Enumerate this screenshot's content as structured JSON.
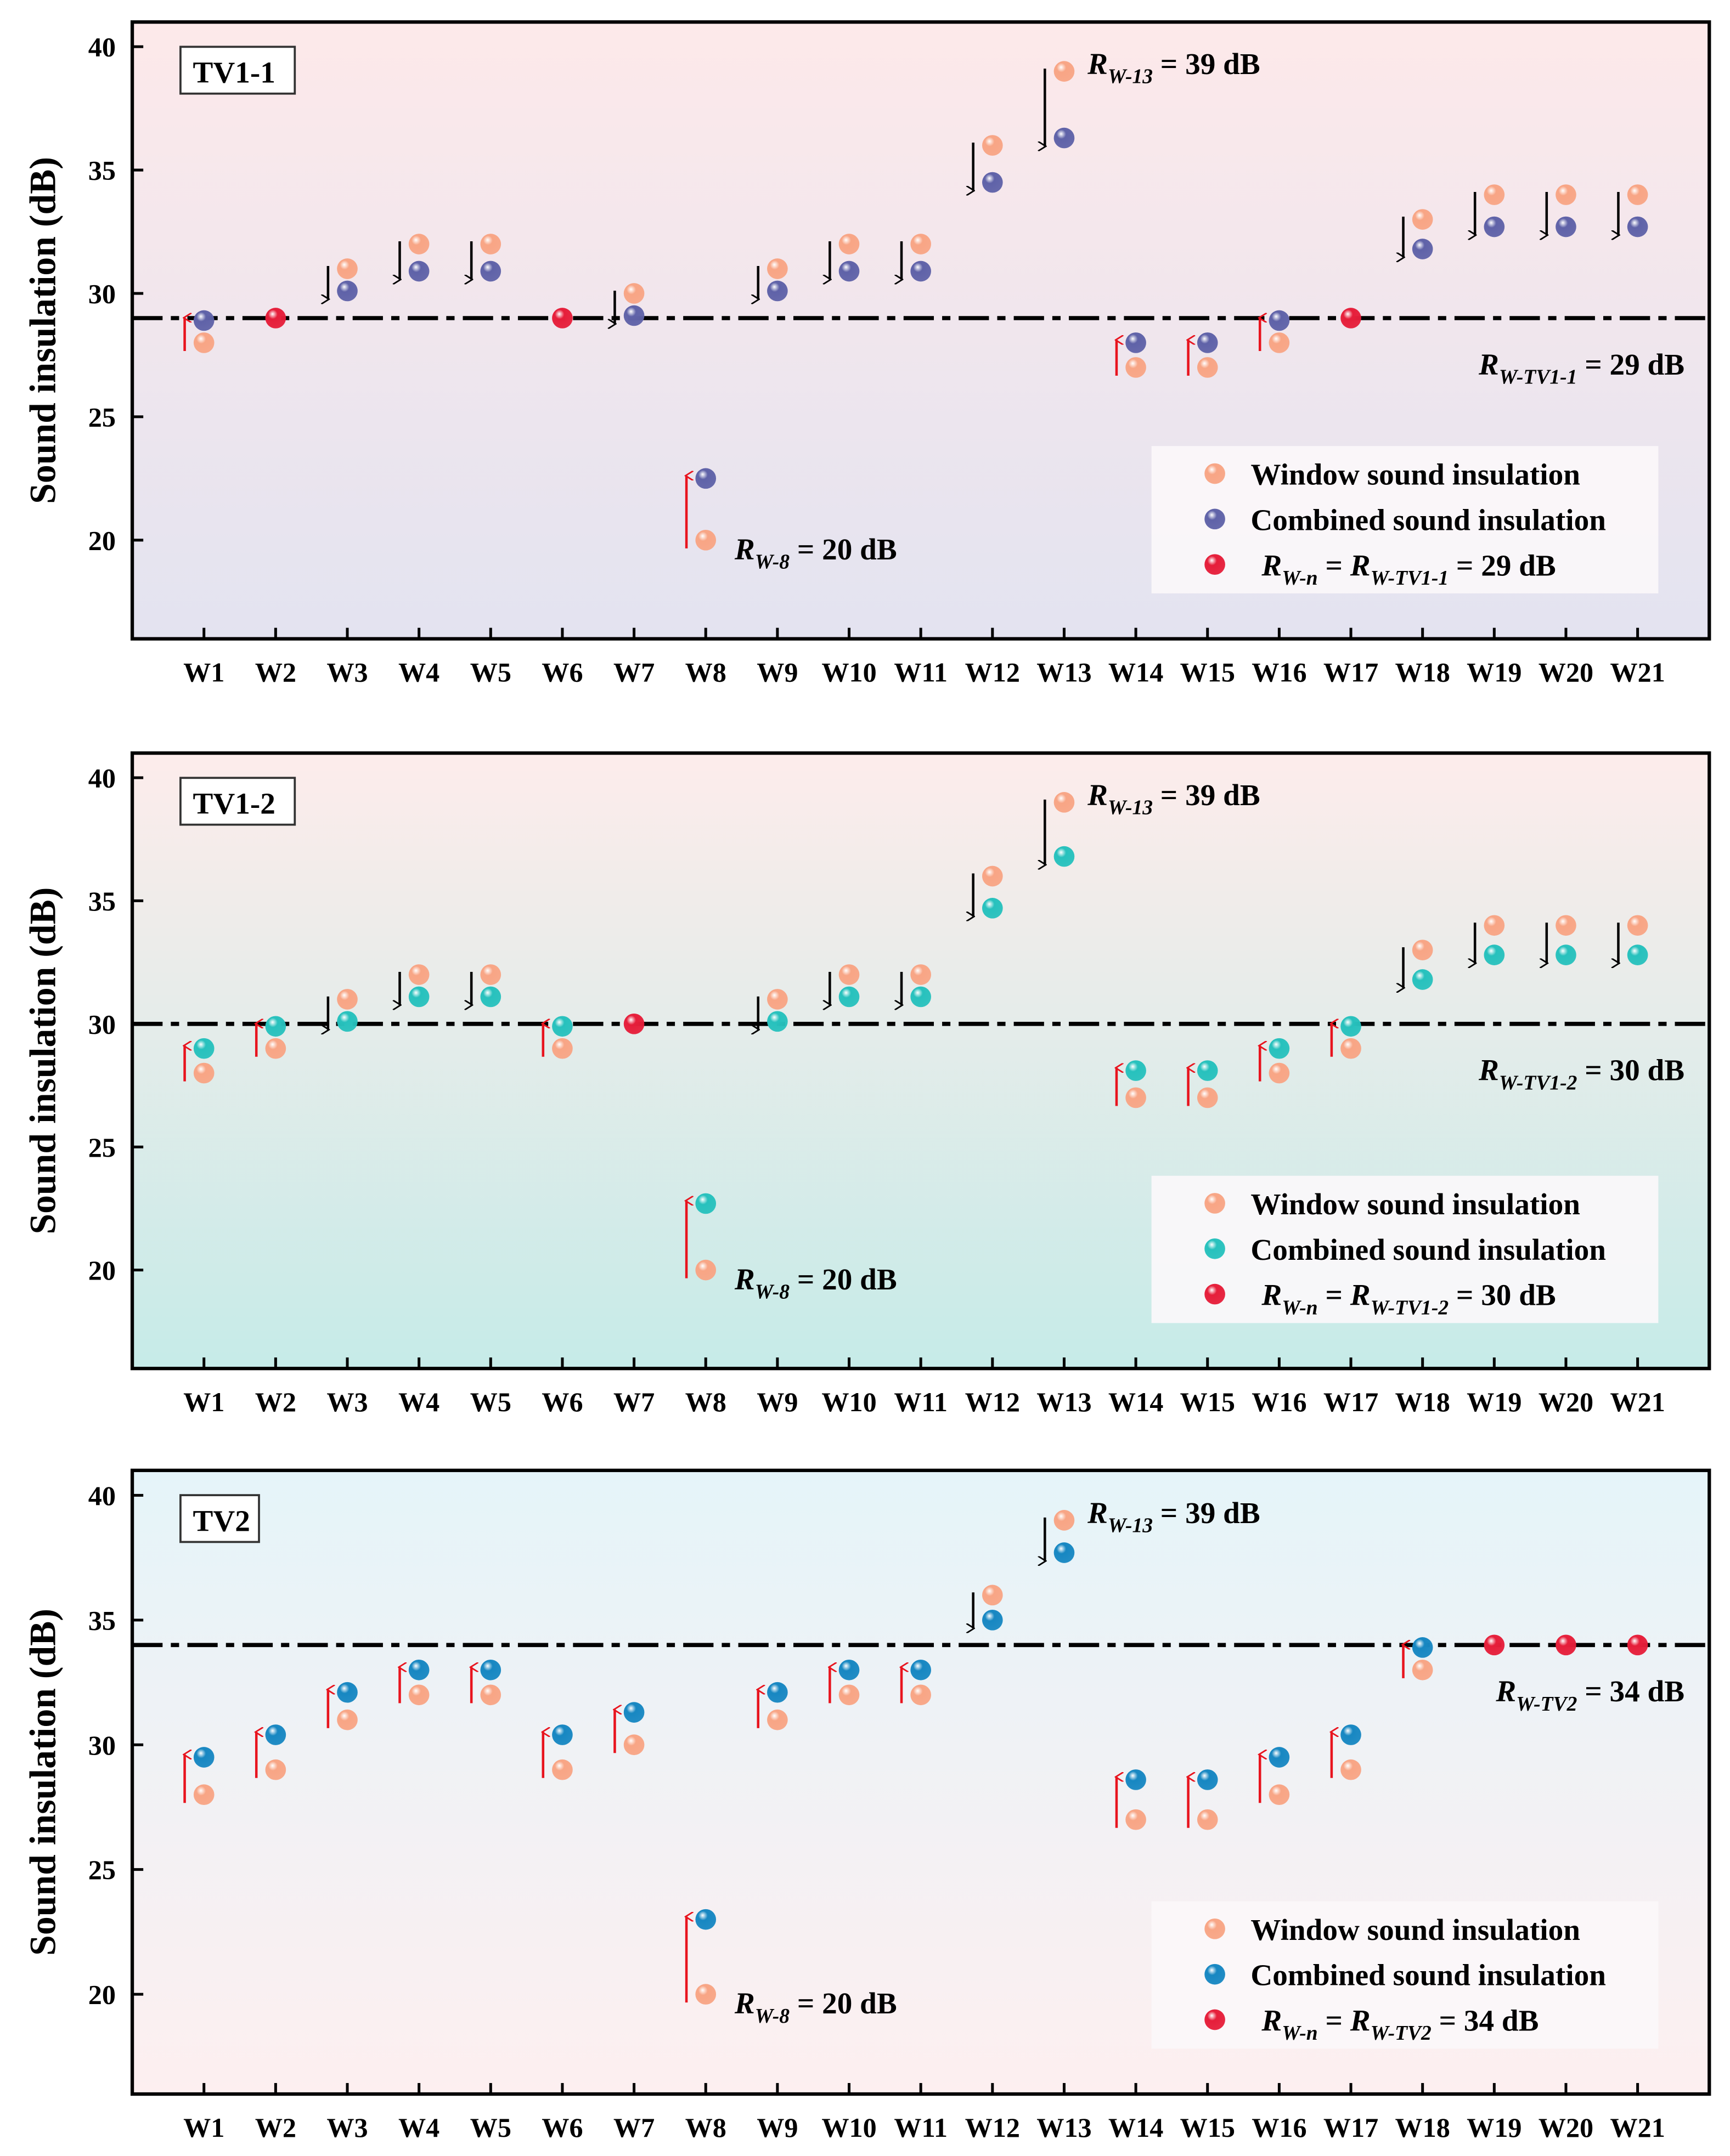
{
  "chart_data": [
    {
      "type": "scatter",
      "panel_label": "TV1-1",
      "ylabel": "Sound insulation (dB)",
      "ylim": [
        16,
        41
      ],
      "yticks": [
        20,
        25,
        30,
        35,
        40
      ],
      "categories": [
        "W1",
        "W2",
        "W3",
        "W4",
        "W5",
        "W6",
        "W7",
        "W8",
        "W9",
        "W10",
        "W11",
        "W12",
        "W13",
        "W14",
        "W15",
        "W16",
        "W17",
        "W18",
        "W19",
        "W20",
        "W21"
      ],
      "reference_value": 29,
      "series": [
        {
          "name": "Window sound insulation",
          "color": "#f8a585",
          "values": [
            28,
            29,
            31,
            32,
            32,
            29,
            30,
            20,
            31,
            32,
            32,
            36,
            39,
            27,
            27,
            28,
            29,
            33,
            34,
            34,
            34
          ]
        },
        {
          "name": "Combined sound insulation",
          "color": "#5f62a8",
          "values": [
            28.9,
            29,
            30.1,
            30.9,
            30.9,
            29,
            29.1,
            22.5,
            30.1,
            30.9,
            30.9,
            34.5,
            36.3,
            28,
            28,
            28.9,
            29,
            31.8,
            32.7,
            32.7,
            32.7
          ]
        },
        {
          "name": "RW-n = RW-TV1-1 = 29 dB",
          "color": "#e61e3a"
        }
      ],
      "legend": [
        [
          {
            "t": "Window sound insulation"
          }
        ],
        [
          {
            "t": "Combined sound insulation"
          }
        ],
        [
          {
            "t": "R",
            "i": true
          },
          {
            "t": "W-n",
            "sub": true
          },
          {
            "t": " = "
          },
          {
            "t": "R",
            "i": true
          },
          {
            "t": "W-TV1-1",
            "sub": true
          },
          {
            "t": " = 29 dB"
          }
        ]
      ],
      "annotations": {
        "max": [
          {
            "t": "R",
            "i": true
          },
          {
            "t": "W-13",
            "sub": true
          },
          {
            "t": " = 39 dB"
          }
        ],
        "min": [
          {
            "t": "R",
            "i": true
          },
          {
            "t": "W-8",
            "sub": true
          },
          {
            "t": " = 20 dB"
          }
        ],
        "ref": [
          {
            "t": "R",
            "i": true
          },
          {
            "t": "W-TV1-1",
            "sub": true
          },
          {
            "t": " = 29 dB"
          }
        ]
      },
      "background": [
        "#fde9ea",
        "#e3e3f0"
      ]
    },
    {
      "type": "scatter",
      "panel_label": "TV1-2",
      "ylabel": "Sound insulation (dB)",
      "ylim": [
        16,
        41
      ],
      "yticks": [
        20,
        25,
        30,
        35,
        40
      ],
      "categories": [
        "W1",
        "W2",
        "W3",
        "W4",
        "W5",
        "W6",
        "W7",
        "W8",
        "W9",
        "W10",
        "W11",
        "W12",
        "W13",
        "W14",
        "W15",
        "W16",
        "W17",
        "W18",
        "W19",
        "W20",
        "W21"
      ],
      "reference_value": 30,
      "series": [
        {
          "name": "Window sound insulation",
          "color": "#f8a585",
          "values": [
            28,
            29,
            31,
            32,
            32,
            29,
            30,
            20,
            31,
            32,
            32,
            36,
            39,
            27,
            27,
            28,
            29,
            33,
            34,
            34,
            34
          ]
        },
        {
          "name": "Combined sound insulation",
          "color": "#27c1bd",
          "values": [
            29,
            29.9,
            30.1,
            31.1,
            31.1,
            29.9,
            30,
            22.7,
            30.1,
            31.1,
            31.1,
            34.7,
            36.8,
            28.1,
            28.1,
            29,
            29.9,
            31.8,
            32.8,
            32.8,
            32.8
          ]
        },
        {
          "name": "RW-n = RW-TV1-2 = 30 dB",
          "color": "#e61e3a"
        }
      ],
      "legend": [
        [
          {
            "t": "Window sound insulation"
          }
        ],
        [
          {
            "t": "Combined sound insulation"
          }
        ],
        [
          {
            "t": "R",
            "i": true
          },
          {
            "t": "W-n",
            "sub": true
          },
          {
            "t": " = "
          },
          {
            "t": "R",
            "i": true
          },
          {
            "t": "W-TV1-2",
            "sub": true
          },
          {
            "t": " = 30 dB"
          }
        ]
      ],
      "annotations": {
        "max": [
          {
            "t": "R",
            "i": true
          },
          {
            "t": "W-13",
            "sub": true
          },
          {
            "t": " = 39 dB"
          }
        ],
        "min": [
          {
            "t": "R",
            "i": true
          },
          {
            "t": "W-8",
            "sub": true
          },
          {
            "t": " = 20 dB"
          }
        ],
        "ref": [
          {
            "t": "R",
            "i": true
          },
          {
            "t": "W-TV1-2",
            "sub": true
          },
          {
            "t": " = 30 dB"
          }
        ]
      },
      "background": [
        "#fdeceb",
        "#c6ebe8"
      ]
    },
    {
      "type": "scatter",
      "panel_label": "TV2",
      "ylabel": "Sound insulation (dB)",
      "ylim": [
        16,
        41
      ],
      "yticks": [
        20,
        25,
        30,
        35,
        40
      ],
      "categories": [
        "W1",
        "W2",
        "W3",
        "W4",
        "W5",
        "W6",
        "W7",
        "W8",
        "W9",
        "W10",
        "W11",
        "W12",
        "W13",
        "W14",
        "W15",
        "W16",
        "W17",
        "W18",
        "W19",
        "W20",
        "W21"
      ],
      "reference_value": 34,
      "series": [
        {
          "name": "Window sound insulation",
          "color": "#f8a585",
          "values": [
            28,
            29,
            31,
            32,
            32,
            29,
            30,
            20,
            31,
            32,
            32,
            36,
            39,
            27,
            27,
            28,
            29,
            33,
            34,
            34,
            34
          ]
        },
        {
          "name": "Combined sound insulation",
          "color": "#1787c2",
          "values": [
            29.5,
            30.4,
            32.1,
            33,
            33,
            30.4,
            31.3,
            23,
            32.1,
            33,
            33,
            35,
            37.7,
            28.6,
            28.6,
            29.5,
            30.4,
            33.9,
            34,
            34,
            34
          ]
        },
        {
          "name": "RW-n = RW-TV2 = 34 dB",
          "color": "#e61e3a"
        }
      ],
      "legend": [
        [
          {
            "t": "Window sound insulation"
          }
        ],
        [
          {
            "t": "Combined sound insulation"
          }
        ],
        [
          {
            "t": "R",
            "i": true
          },
          {
            "t": "W-n",
            "sub": true
          },
          {
            "t": " = "
          },
          {
            "t": "R",
            "i": true
          },
          {
            "t": "W-TV2",
            "sub": true
          },
          {
            "t": " = 34 dB"
          }
        ]
      ],
      "annotations": {
        "max": [
          {
            "t": "R",
            "i": true
          },
          {
            "t": "W-13",
            "sub": true
          },
          {
            "t": " = 39 dB"
          }
        ],
        "min": [
          {
            "t": "R",
            "i": true
          },
          {
            "t": "W-8",
            "sub": true
          },
          {
            "t": " = 20 dB"
          }
        ],
        "ref": [
          {
            "t": "R",
            "i": true
          },
          {
            "t": "W-TV2",
            "sub": true
          },
          {
            "t": " = 34 dB"
          }
        ]
      },
      "background": [
        "#e5f4f9",
        "#fdeff0"
      ]
    }
  ]
}
